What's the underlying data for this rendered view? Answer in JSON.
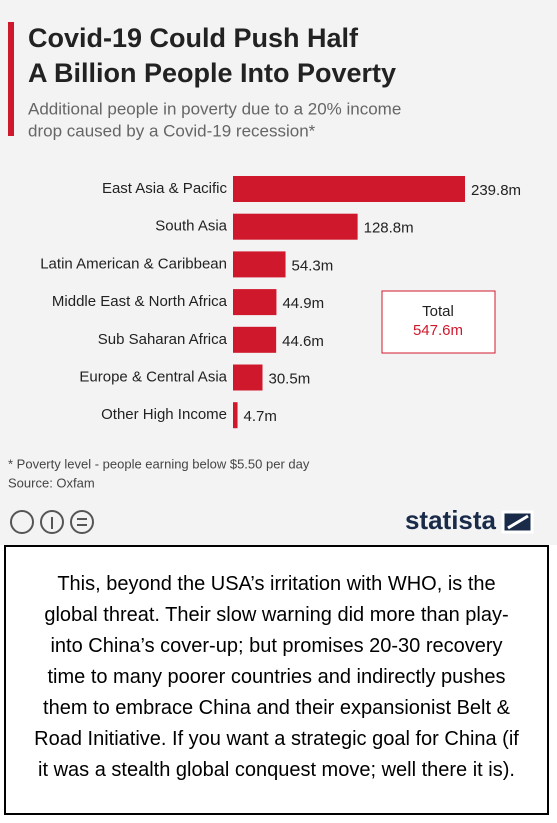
{
  "chart_data": {
    "type": "bar",
    "orientation": "horizontal",
    "title": [
      "Covid-19 Could Push Half",
      "A Billion People Into Poverty"
    ],
    "subtitle": [
      "Additional people in poverty due to a 20% income",
      "drop caused by a Covid-19 recession*"
    ],
    "categories": [
      "East Asia & Pacific",
      "South Asia",
      "Latin American & Caribbean",
      "Middle East & North Africa",
      "Sub Saharan Africa",
      "Europe & Central Asia",
      "Other High Income"
    ],
    "values": [
      239.8,
      128.8,
      54.3,
      44.9,
      44.6,
      30.5,
      4.7
    ],
    "value_labels": [
      "239.8m",
      "128.8m",
      "54.3m",
      "44.9m",
      "44.6m",
      "30.5m",
      "4.7m"
    ],
    "color": "#d0182c",
    "total": {
      "label": "Total",
      "value_label": "547.6m"
    },
    "footnote": "* Poverty level - people earning below $5.50 per day",
    "source": "Source: Oxfam",
    "brand": "statista"
  },
  "comment": "This, beyond the USA’s irritation with WHO, is the global threat. Their slow warning did more than play-into China’s cover-up; but promises 20-30 recovery time to many poorer countries and indirectly pushes them to embrace China and their expansionist Belt & Road Initiative. If you want a strategic goal for China (if it was a stealth global conquest move; well there it is)."
}
